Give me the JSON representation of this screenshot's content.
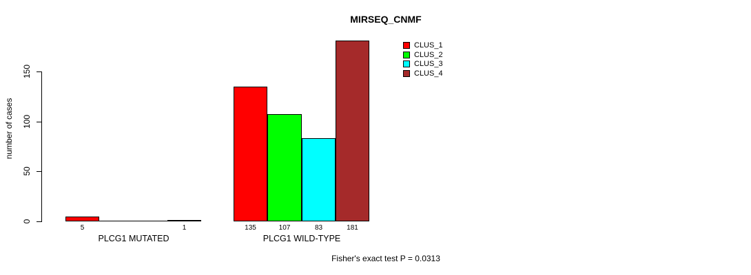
{
  "chart_data": {
    "type": "bar",
    "title": "MIRSEQ_CNMF",
    "ylabel": "number of cases",
    "xlabel": "",
    "categories": [
      "PLCG1 MUTATED",
      "PLCG1 WILD-TYPE"
    ],
    "series": [
      {
        "name": "CLUS_1",
        "color": "#FF0000",
        "values": [
          5,
          135
        ]
      },
      {
        "name": "CLUS_2",
        "color": "#00FF00",
        "values": [
          0,
          107
        ]
      },
      {
        "name": "CLUS_3",
        "color": "#00FFFF",
        "values": [
          0,
          83
        ]
      },
      {
        "name": "CLUS_4",
        "color": "#A52A2A",
        "values": [
          1,
          181
        ]
      }
    ],
    "yticks": [
      0,
      50,
      100,
      150
    ],
    "ylim": [
      0,
      185
    ],
    "grid": false,
    "legend_position": "top-right",
    "bar_value_labels_visible_for": "values greater than zero",
    "annotation": "Fisher's exact test P = 0.0313"
  }
}
